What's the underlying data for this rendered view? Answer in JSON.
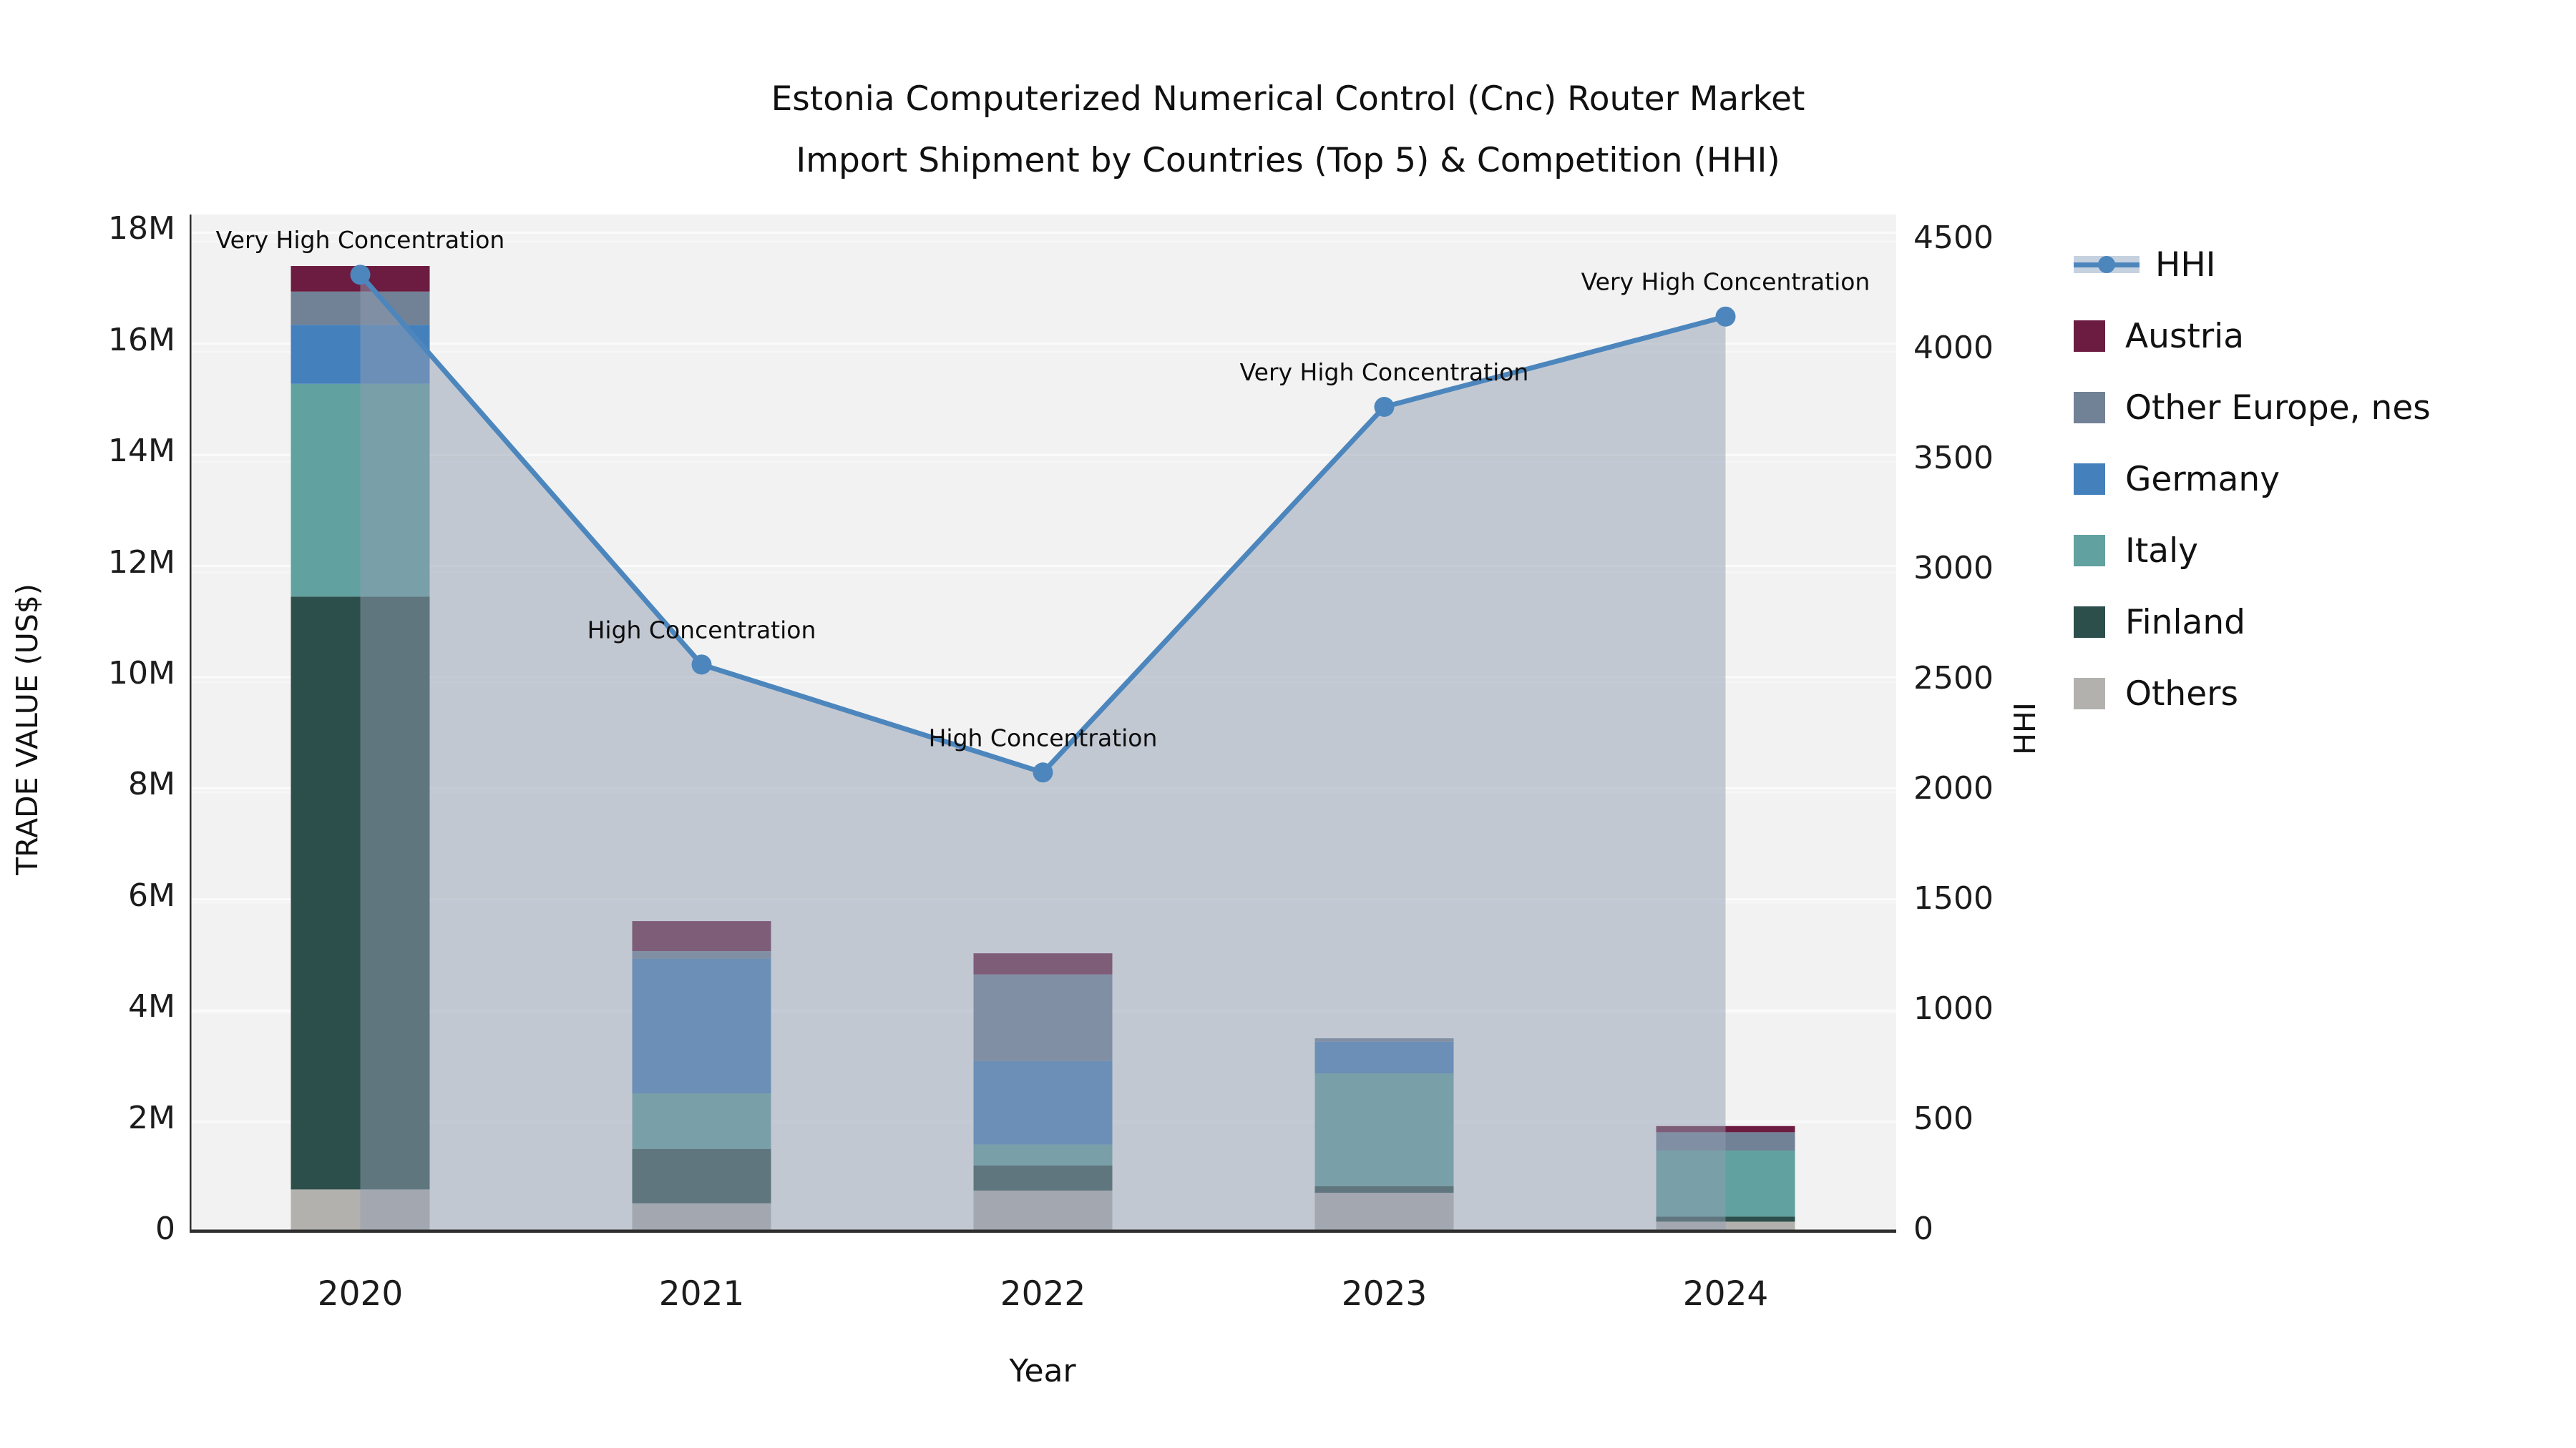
{
  "title": {
    "line1": "Estonia Computerized Numerical Control (Cnc) Router Market",
    "line2": "Import Shipment by Countries (Top 5) & Competition (HHI)"
  },
  "axes": {
    "y_left_title": "TRADE VALUE (US$)",
    "y_right_title": "HHI",
    "x_title": "Year",
    "y_left_ticks": [
      "0",
      "2M",
      "4M",
      "6M",
      "8M",
      "10M",
      "12M",
      "14M",
      "16M",
      "18M"
    ],
    "y_right_ticks": [
      "0",
      "500",
      "1000",
      "1500",
      "2000",
      "2500",
      "3000",
      "3500",
      "4000",
      "4500"
    ]
  },
  "legend": {
    "items": [
      {
        "label": "HHI",
        "type": "line",
        "color": "#4c86bd"
      },
      {
        "label": "Austria",
        "type": "box",
        "color": "#6b1c40"
      },
      {
        "label": "Other Europe, nes",
        "type": "box",
        "color": "#718196"
      },
      {
        "label": "Germany",
        "type": "box",
        "color": "#4480bc"
      },
      {
        "label": "Italy",
        "type": "box",
        "color": "#61a1a0"
      },
      {
        "label": "Finland",
        "type": "box",
        "color": "#2d4f4b"
      },
      {
        "label": "Others",
        "type": "box",
        "color": "#b2b1ae"
      }
    ]
  },
  "chart_data": {
    "type": "bar",
    "subtype": "stacked-bars-with-line",
    "categories": [
      "2020",
      "2021",
      "2022",
      "2023",
      "2024"
    ],
    "value_unit": "million US$",
    "series": [
      {
        "name": "Others",
        "color": "#b2b1ae",
        "values": [
          0.78,
          0.53,
          0.76,
          0.72,
          0.2
        ]
      },
      {
        "name": "Finland",
        "color": "#2d4f4b",
        "values": [
          10.67,
          0.98,
          0.45,
          0.12,
          0.09
        ]
      },
      {
        "name": "Italy",
        "color": "#61a1a0",
        "values": [
          3.83,
          1.0,
          0.38,
          2.03,
          1.19
        ]
      },
      {
        "name": "Germany",
        "color": "#4480bc",
        "values": [
          1.06,
          2.42,
          1.5,
          0.57,
          0.0
        ]
      },
      {
        "name": "Other Europe, nes",
        "color": "#718196",
        "values": [
          0.6,
          0.14,
          1.56,
          0.06,
          0.33
        ]
      },
      {
        "name": "Austria",
        "color": "#6b1c40",
        "values": [
          0.46,
          0.54,
          0.38,
          0.0,
          0.11
        ]
      }
    ],
    "line_series": {
      "name": "HHI",
      "color": "#4c86bd",
      "area_fill": "rgba(145,158,177,0.5)",
      "values": [
        4350,
        2580,
        2090,
        3750,
        4160
      ]
    },
    "annotations": [
      "Very High Concentration",
      "High Concentration",
      "High Concentration",
      "Very High Concentration",
      "Very High Concentration"
    ],
    "title": "Estonia Computerized Numerical Control (Cnc) Router Market Import Shipment by Countries (Top 5) & Competition (HHI)",
    "xlabel": "Year",
    "ylabel_left": "TRADE VALUE (US$)",
    "ylabel_right": "HHI",
    "ylim_left": [
      0,
      18000000
    ],
    "ylim_right": [
      0,
      4500
    ],
    "grid": true,
    "legend_position": "right"
  },
  "colors": {
    "plot_bg": "#f2f2f2",
    "figure_bg": "#ffffff",
    "gridline": "#fbfbfb",
    "axis_line": "#2f2f2f",
    "text": "#111111"
  }
}
